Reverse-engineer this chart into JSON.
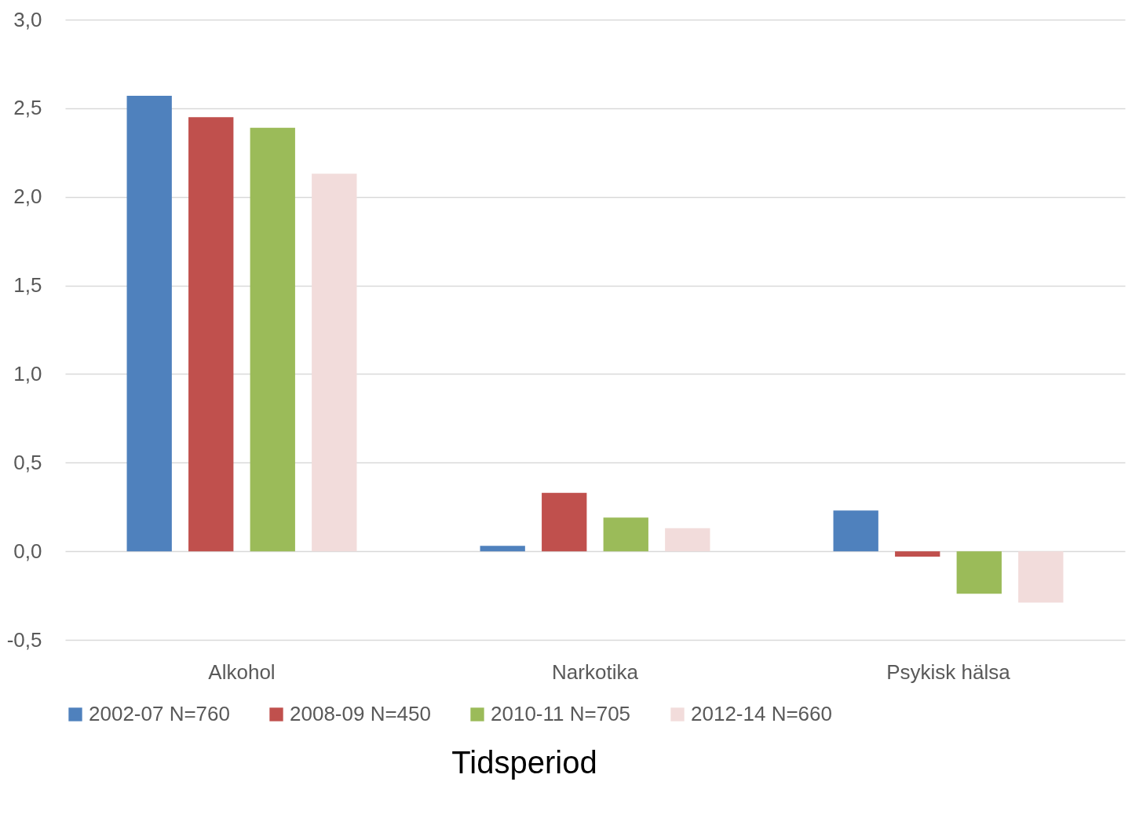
{
  "chart_data": {
    "type": "bar",
    "xlabel": "Tidsperiod",
    "categories": [
      "Alkohol",
      "Narkotika",
      "Psykisk hälsa"
    ],
    "series": [
      {
        "name": "2002-07 N=760",
        "color": "#4f81bd",
        "values": [
          2.57,
          0.03,
          0.23
        ]
      },
      {
        "name": "2008-09 N=450",
        "color": "#c0504d",
        "values": [
          2.45,
          0.33,
          -0.03
        ]
      },
      {
        "name": "2010-11 N=705",
        "color": "#9bbb59",
        "values": [
          2.39,
          0.19,
          -0.24
        ]
      },
      {
        "name": "2012-14 N=660",
        "color": "#f2dcdb",
        "values": [
          2.13,
          0.13,
          -0.29
        ]
      }
    ],
    "ylim": [
      -0.5,
      3.0
    ],
    "yticks": [
      {
        "value": -0.5,
        "label": "-0,5"
      },
      {
        "value": 0,
        "label": "0,0"
      },
      {
        "value": 0.5,
        "label": "0,5"
      },
      {
        "value": 1.0,
        "label": "1,0"
      },
      {
        "value": 1.5,
        "label": "1,5"
      },
      {
        "value": 2.0,
        "label": "2,0"
      },
      {
        "value": 2.5,
        "label": "2,5"
      },
      {
        "value": 3.0,
        "label": "3,0"
      }
    ],
    "grid": "y",
    "legend": "bottom"
  }
}
